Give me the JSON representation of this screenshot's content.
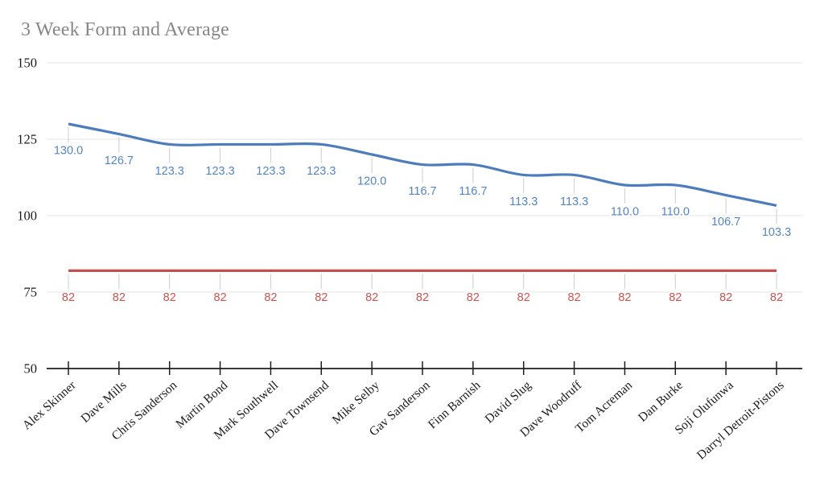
{
  "chart_data": {
    "type": "line",
    "title": "3 Week Form and Average",
    "categories": [
      "Alex Skinner",
      "Dave Mills",
      "Chris Sanderson",
      "Martin Bond",
      "Mark Southwell",
      "Dave Townsend",
      "Mike Selby",
      "Gav Sanderson",
      "Finn Barnish",
      "David Slug",
      "Dave Woodruff",
      "Tom Acreman",
      "Dan Burke",
      "Soji Olufunwa",
      "Darryl Detroit-Pistons"
    ],
    "series": [
      {
        "name": "3 Week Form",
        "color": "#4d7cbd",
        "label_color": "#5285c5",
        "values": [
          130.0,
          126.7,
          123.3,
          123.3,
          123.3,
          123.3,
          120.0,
          116.7,
          116.7,
          113.3,
          113.3,
          110.0,
          110.0,
          106.7,
          103.3
        ],
        "point_labels": [
          "130.0",
          "126.7",
          "123.3",
          "123.3",
          "123.3",
          "123.3",
          "120.0",
          "116.7",
          "116.7",
          "113.3",
          "113.3",
          "110.0",
          "110.0",
          "106.7",
          "103.3"
        ]
      },
      {
        "name": "Average",
        "color": "#c4504d",
        "label_color": "#cb5451",
        "values": [
          82,
          82,
          82,
          82,
          82,
          82,
          82,
          82,
          82,
          82,
          82,
          82,
          82,
          82,
          82
        ],
        "point_labels": [
          "82",
          "82",
          "82",
          "82",
          "82",
          "82",
          "82",
          "82",
          "82",
          "82",
          "82",
          "82",
          "82",
          "82",
          "82"
        ]
      }
    ],
    "xlabel": "",
    "ylabel": "",
    "ylim": [
      50,
      150
    ],
    "yticks": [
      150,
      125,
      100,
      75,
      50
    ],
    "grid": true,
    "legend": "none",
    "curve": "smooth",
    "styles": {
      "title_color": "#878787",
      "axis_text_color": "#1a1a1a",
      "axis_line_color": "#1d1d1d",
      "gridline_color": "#e6e6e6",
      "leader_line_color": "#cccccc",
      "background": "#ffffff"
    }
  }
}
